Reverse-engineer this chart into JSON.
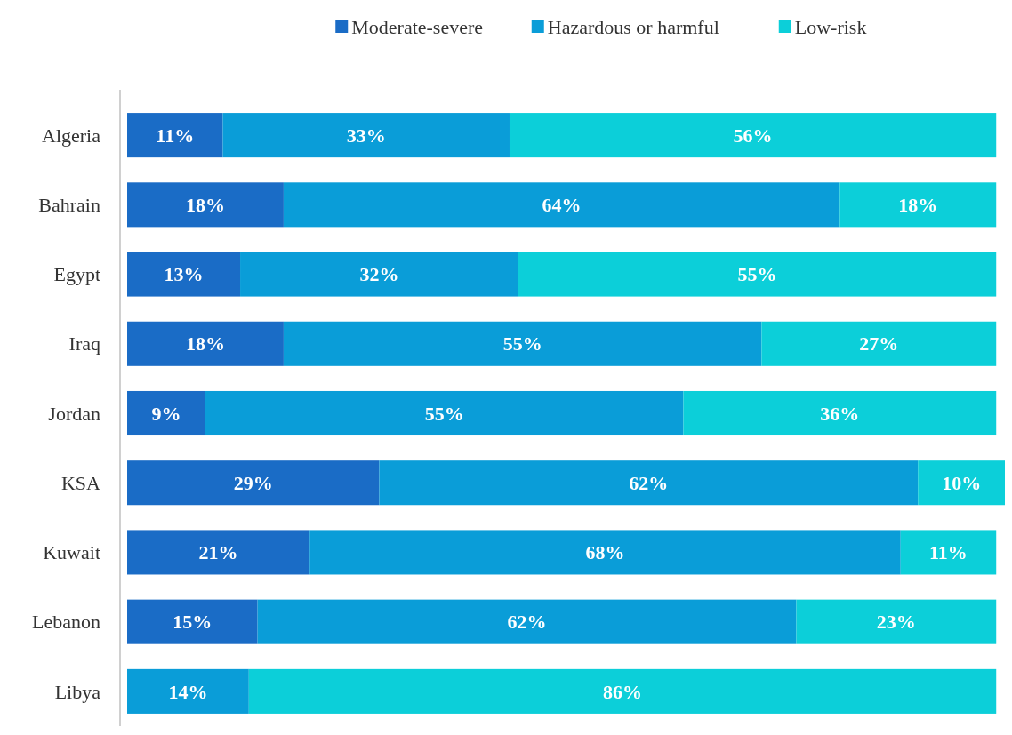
{
  "chart_data": {
    "type": "bar",
    "orientation": "horizontal",
    "stacked": true,
    "legend": "top",
    "categories": [
      "Algeria",
      "Bahrain",
      "Egypt",
      "Iraq",
      "Jordan",
      "KSA",
      "Kuwait",
      "Lebanon",
      "Libya"
    ],
    "series": [
      {
        "name": "Moderate-severe",
        "color": "#1a6cc6",
        "values": [
          11,
          18,
          13,
          18,
          9,
          29,
          21,
          15,
          null
        ],
        "value_labels": [
          "11%",
          "18%",
          "13%",
          "18%",
          "9%",
          "29%",
          "21%",
          "15%",
          null
        ]
      },
      {
        "name": "Hazardous or harmful",
        "color": "#0a9dd8",
        "values": [
          33,
          64,
          32,
          55,
          55,
          62,
          68,
          62,
          14
        ],
        "value_labels": [
          "33%",
          "64%",
          "32%",
          "55%",
          "55%",
          "62%",
          "68%",
          "62%",
          "14%"
        ]
      },
      {
        "name": "Low-risk",
        "color": "#0ccfd9",
        "values": [
          56,
          18,
          55,
          27,
          36,
          10,
          11,
          23,
          86
        ],
        "value_labels": [
          "56%",
          "18%",
          "55%",
          "27%",
          "36%",
          "10%",
          "11%",
          "23%",
          "86%"
        ]
      }
    ]
  }
}
